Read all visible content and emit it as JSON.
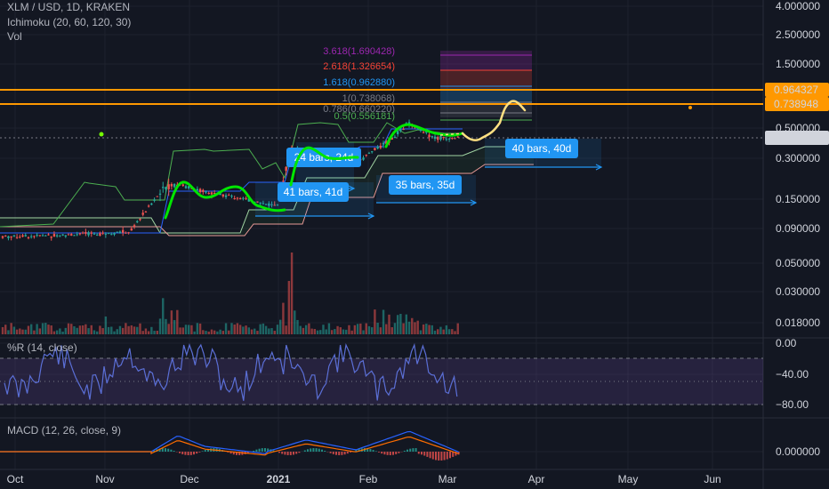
{
  "legend": {
    "symbol": "XLM / USD, 1D, KRAKEN",
    "ichimoku": "Ichimoku (20, 60, 120, 30)",
    "vol": "Vol",
    "wpr": "%R (14, close)",
    "macd": "MACD (12, 26, close, 9)"
  },
  "colors": {
    "background": "#131722",
    "up": "#26a69a",
    "down": "#ef5350",
    "orange_line": "#ff9800",
    "highlight": "#00e600",
    "projection": "#ffe082",
    "measure": "#2196f3",
    "wpr_band": "#2a1f3d",
    "wpr_line": "#5b6fd6"
  },
  "chart_data": [
    {
      "type": "line",
      "title": "XLM / USD, 1D, KRAKEN",
      "y_scale": "log",
      "y_ticks": [
        "4.000000",
        "2.500000",
        "1.500000",
        "0.500000",
        "0.300000",
        "0.150000",
        "0.090000"
      ],
      "x_ticks": [
        "Oct",
        "Nov",
        "Dec",
        "2021",
        "Feb",
        "Mar",
        "Apr",
        "May",
        "Jun"
      ],
      "price_labels": [
        "0.964327",
        "0.738948",
        "0.426013"
      ],
      "fib_levels": [
        {
          "label": "3.618(1.690428)",
          "color": "#9c27b0"
        },
        {
          "label": "2.618(1.326654)",
          "color": "#f44336"
        },
        {
          "label": "1.618(0.962880)",
          "color": "#2196f3"
        },
        {
          "label": "1(0.738068)",
          "color": "#787b86"
        },
        {
          "label": "0.786(0.660220)",
          "color": "#787b86"
        },
        {
          "label": "0.5(0.556181)",
          "color": "#4caf50"
        }
      ],
      "measure_labels": [
        "24 bars, 24d",
        "41 bars, 41d",
        "35 bars, 35d",
        "40 bars, 40d"
      ],
      "series": [
        {
          "name": "XLM / USD",
          "x": [
            "2020-09-20",
            "2020-10-15",
            "2020-11-10",
            "2020-11-20",
            "2020-11-25",
            "2020-12-05",
            "2020-12-20",
            "2021-01-01",
            "2021-01-05",
            "2021-01-15",
            "2021-01-28",
            "2021-02-10",
            "2021-02-15",
            "2021-02-25",
            "2021-03-04"
          ],
          "values": [
            0.078,
            0.08,
            0.085,
            0.16,
            0.2,
            0.17,
            0.15,
            0.13,
            0.35,
            0.32,
            0.28,
            0.42,
            0.55,
            0.42,
            0.426013
          ]
        }
      ]
    },
    {
      "type": "bar",
      "title": "Vol",
      "y_ticks": [
        "0.050000",
        "0.030000",
        "0.018000"
      ]
    },
    {
      "type": "line",
      "title": "%R (14, close)",
      "y_ticks": [
        "0.00",
        "−40.00",
        "−80.00"
      ],
      "ylim": [
        -100,
        0
      ],
      "bands": [
        -20,
        -80
      ]
    },
    {
      "type": "line",
      "title": "MACD (12, 26, close, 9)",
      "y_ticks": [
        "0.000000"
      ]
    }
  ]
}
